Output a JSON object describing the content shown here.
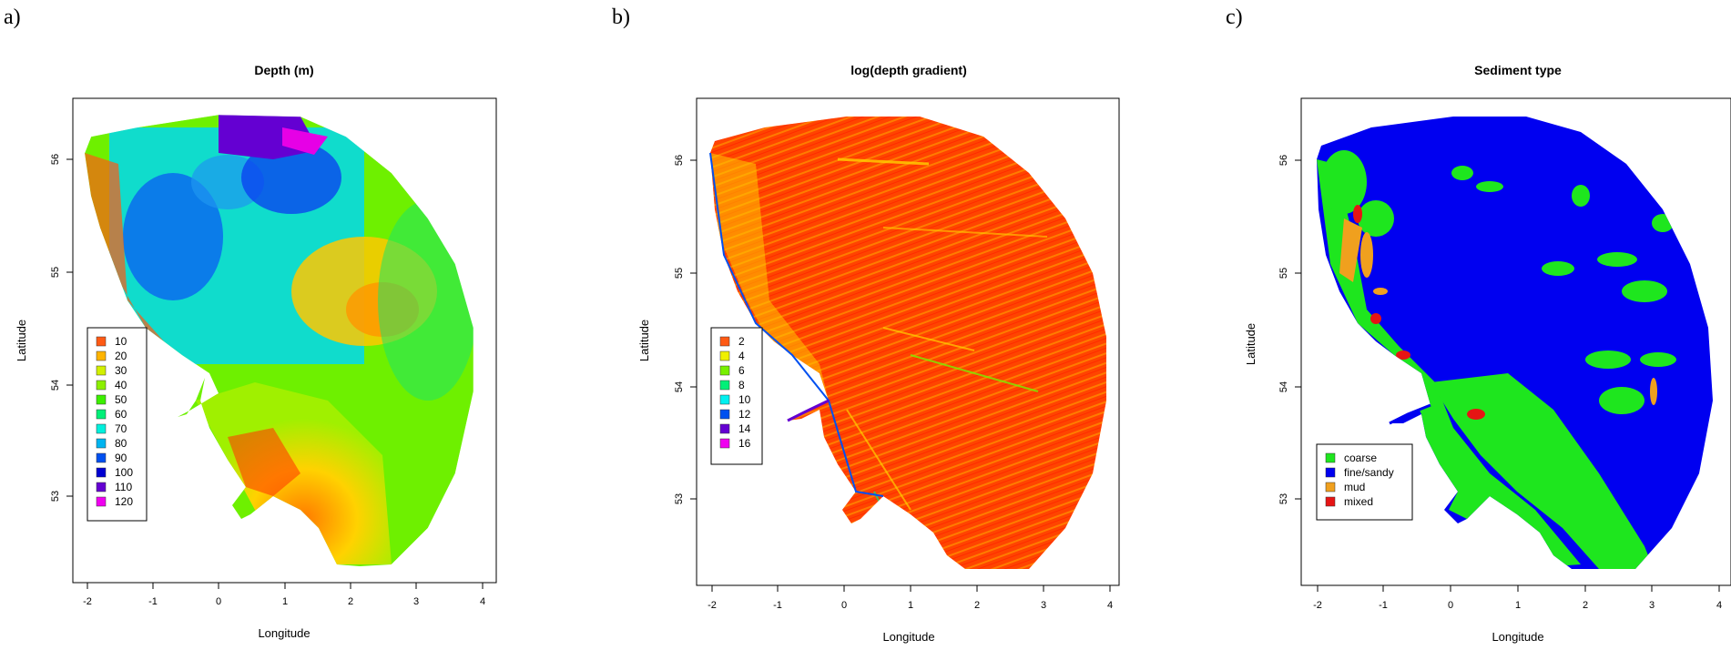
{
  "panels": [
    {
      "letter": "a)",
      "title": "Depth (m)",
      "xlabel": "Longitude",
      "ylabel": "Latitude",
      "xticks": [
        "-2",
        "-1",
        "0",
        "1",
        "2",
        "3",
        "4"
      ],
      "yticks": [
        "53",
        "54",
        "55",
        "56"
      ],
      "legend": [
        {
          "label": "10",
          "color": "#ff5a14"
        },
        {
          "label": "20",
          "color": "#ffb400"
        },
        {
          "label": "30",
          "color": "#d2f000"
        },
        {
          "label": "40",
          "color": "#8cf000"
        },
        {
          "label": "50",
          "color": "#3cf000"
        },
        {
          "label": "60",
          "color": "#00f078"
        },
        {
          "label": "70",
          "color": "#00f0dc"
        },
        {
          "label": "80",
          "color": "#00b4f0"
        },
        {
          "label": "90",
          "color": "#0050f0"
        },
        {
          "label": "100",
          "color": "#0000d2"
        },
        {
          "label": "110",
          "color": "#6400d2"
        },
        {
          "label": "120",
          "color": "#f000f0"
        }
      ]
    },
    {
      "letter": "b)",
      "title": "log(depth gradient)",
      "xlabel": "Longitude",
      "ylabel": "Latitude",
      "xticks": [
        "-2",
        "-1",
        "0",
        "1",
        "2",
        "3",
        "4"
      ],
      "yticks": [
        "53",
        "54",
        "55",
        "56"
      ],
      "legend": [
        {
          "label": "2",
          "color": "#ff5a14"
        },
        {
          "label": "4",
          "color": "#f0f000"
        },
        {
          "label": "6",
          "color": "#78f000"
        },
        {
          "label": "8",
          "color": "#00f078"
        },
        {
          "label": "10",
          "color": "#00f0f0"
        },
        {
          "label": "12",
          "color": "#0050f0"
        },
        {
          "label": "14",
          "color": "#6400d2"
        },
        {
          "label": "16",
          "color": "#f000f0"
        }
      ]
    },
    {
      "letter": "c)",
      "title": "Sediment type",
      "xlabel": "Longitude",
      "ylabel": "Latitude",
      "xticks": [
        "-2",
        "-1",
        "0",
        "1",
        "2",
        "3",
        "4"
      ],
      "yticks": [
        "53",
        "54",
        "55",
        "56"
      ],
      "legend": [
        {
          "label": "coarse",
          "color": "#1ee61e"
        },
        {
          "label": "fine/sandy",
          "color": "#0000f0"
        },
        {
          "label": "mud",
          "color": "#f0a01e"
        },
        {
          "label": "mixed",
          "color": "#e61414"
        }
      ]
    }
  ]
}
